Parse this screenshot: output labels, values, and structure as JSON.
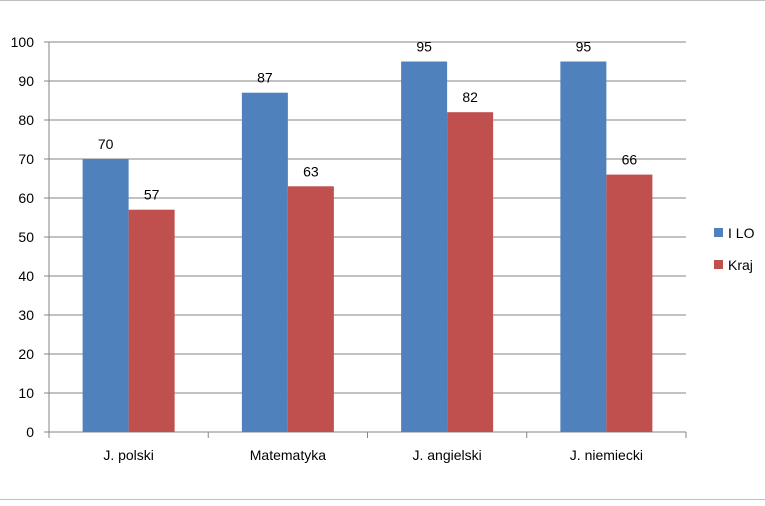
{
  "chart_data": {
    "type": "bar",
    "categories": [
      "J. polski",
      "Matematyka",
      "J. angielski",
      "J. niemiecki"
    ],
    "series": [
      {
        "name": "I LO",
        "values": [
          70,
          87,
          95,
          95
        ],
        "color": "#4F81BD"
      },
      {
        "name": "Kraj",
        "values": [
          57,
          63,
          82,
          66
        ],
        "color": "#C0504D"
      }
    ],
    "ylim": [
      0,
      100
    ],
    "yticks": [
      0,
      10,
      20,
      30,
      40,
      50,
      60,
      70,
      80,
      90,
      100
    ],
    "grid": true,
    "legend_position": "right",
    "data_labels": true
  }
}
